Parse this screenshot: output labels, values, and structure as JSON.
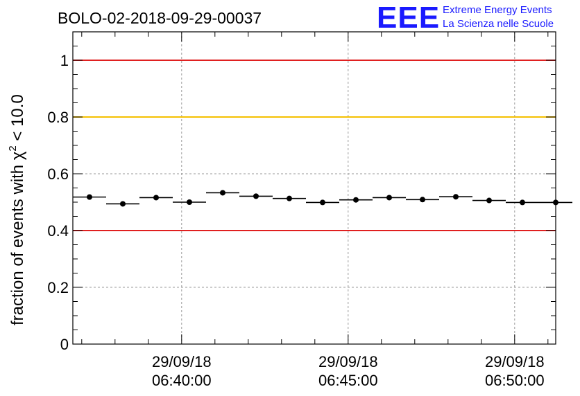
{
  "title": "BOLO-02-2018-09-29-00037",
  "logo": {
    "mark": "EEE",
    "line1": "Extreme Energy Events",
    "line2": "La Scienza nelle Scuole"
  },
  "chart_data": {
    "type": "scatter",
    "title": "BOLO-02-2018-09-29-00037",
    "ylabel_prefix": "fraction of events with ",
    "ylabel_symbol": "χ",
    "ylabel_sup": "2",
    "ylabel_suffix": " < 10.0",
    "xlabel": "",
    "x_range_min": [
      "06:36:44",
      "06:51:14"
    ],
    "ylim": [
      0,
      1.1
    ],
    "y_ticks": [
      0,
      0.2,
      0.4,
      0.6,
      0.8,
      1
    ],
    "y_tick_labels": [
      "0",
      "0.2",
      "0.4",
      "0.6",
      "0.8",
      "1"
    ],
    "x_major_ticks": [
      {
        "date": "29/09/18",
        "time": "06:40:00"
      },
      {
        "date": "29/09/18",
        "time": "06:45:00"
      },
      {
        "date": "29/09/18",
        "time": "06:50:00"
      }
    ],
    "bin_width_s": 60,
    "series": [
      {
        "name": "fraction",
        "x_start": [
          "06:36:44",
          "06:37:44",
          "06:38:44",
          "06:39:44",
          "06:40:44",
          "06:41:44",
          "06:42:44",
          "06:43:44",
          "06:44:44",
          "06:45:44",
          "06:46:44",
          "06:47:44",
          "06:48:44",
          "06:49:44",
          "06:50:44"
        ],
        "values": [
          0.518,
          0.494,
          0.516,
          0.5,
          0.533,
          0.521,
          0.513,
          0.499,
          0.508,
          0.516,
          0.509,
          0.519,
          0.506,
          0.499,
          0.499
        ]
      }
    ],
    "reference_lines": [
      {
        "y": 1.0,
        "color": "#e02020"
      },
      {
        "y": 0.8,
        "color": "#f5c000"
      },
      {
        "y": 0.4,
        "color": "#e02020"
      }
    ],
    "grid": true
  }
}
